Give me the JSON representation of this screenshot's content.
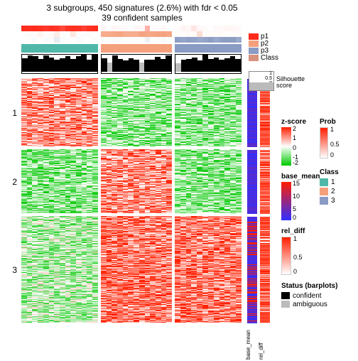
{
  "title": "3 subgroups, 450 signatures (2.6%) with fdr < 0.05",
  "subtitle": "39 confident samples",
  "groups": {
    "widths": [
      108,
      100,
      94
    ],
    "n_samples": [
      14,
      13,
      12
    ],
    "class_colors": [
      "#4fb8a8",
      "#f5a07d",
      "#8a9bc4"
    ]
  },
  "prob_annotation": {
    "labels": [
      "p1",
      "p2",
      "p3"
    ],
    "colors": [
      "#ff2a1a",
      "#f5a07d",
      "#8a9bc4"
    ],
    "bg": "#ffffff"
  },
  "class_annotation": {
    "label": "Class"
  },
  "silhouette": {
    "label": "Silhouette\nscore",
    "ticks": [
      "1",
      "0.5",
      "0",
      "-0.5"
    ]
  },
  "heatmap": {
    "row_groups": [
      {
        "label": "1",
        "n": 96
      },
      {
        "label": "2",
        "n": 90
      },
      {
        "label": "3",
        "n": 150
      }
    ],
    "colors": {
      "low": "#00c800",
      "mid": "#ffffff",
      "high": "#ff1e00"
    }
  },
  "side_annotations": {
    "base_mean": {
      "label": "base_mean",
      "low": "#3030ff",
      "high": "#ff1e00"
    },
    "rel_diff": {
      "label": "rel_diff",
      "low": "#ffffff",
      "high": "#ff1e00"
    }
  },
  "legends_topright": [
    {
      "label": "p1",
      "color": "#ff2a1a"
    },
    {
      "label": "p2",
      "color": "#f5a07d"
    },
    {
      "label": "p3",
      "color": "#8a9bc4"
    },
    {
      "label": "Class",
      "color": "#d8917d"
    }
  ],
  "zscore_legend": {
    "title": "z-score",
    "ticks": [
      "2",
      "1",
      "0",
      "-1",
      "-2"
    ],
    "top": "#ff1e00",
    "mid": "#ffffff",
    "bot": "#00c800"
  },
  "basemean_legend": {
    "title": "base_mean",
    "ticks": [
      "15",
      "10",
      "5",
      "0"
    ],
    "top": "#ff1e00",
    "bot": "#3030ff"
  },
  "reldiff_legend": {
    "title": "rel_diff",
    "ticks": [
      "1",
      "0.5",
      "0"
    ],
    "top": "#ff1e00",
    "bot": "#ffffff"
  },
  "status_legend": {
    "title": "Status (barplots)",
    "items": [
      {
        "label": "confident",
        "color": "#000000"
      },
      {
        "label": "ambiguous",
        "color": "#bcbcbc"
      }
    ]
  },
  "prob_legend": {
    "title": "Prob",
    "ticks": [
      "1",
      "0.5",
      "0"
    ],
    "top": "#ff1e00",
    "bot": "#ffffff"
  },
  "class_legend": {
    "title": "Class",
    "items": [
      {
        "label": "1",
        "color": "#4fb8a8"
      },
      {
        "label": "2",
        "color": "#f5a07d"
      },
      {
        "label": "3",
        "color": "#8a9bc4"
      }
    ]
  }
}
